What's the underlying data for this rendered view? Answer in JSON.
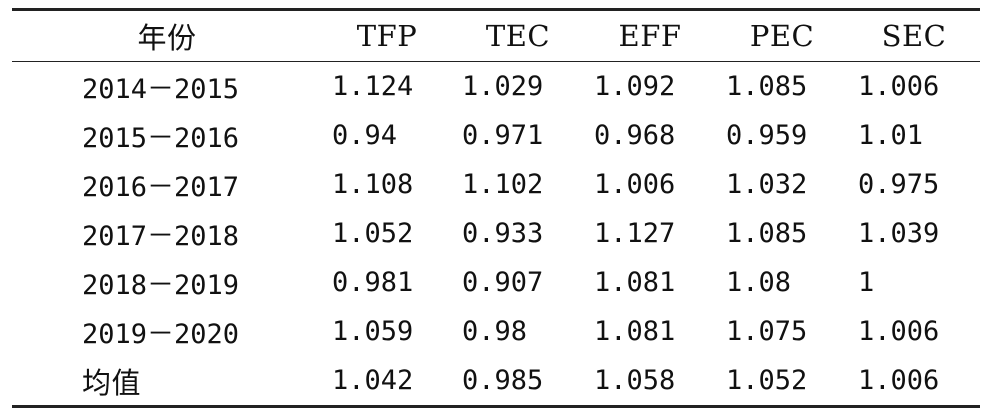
{
  "table": {
    "headers": [
      "年份",
      "TFP",
      "TEC",
      "EFF",
      "PEC",
      "SEC"
    ],
    "rows": [
      {
        "label": "2014－2015",
        "values": [
          "1.124",
          "1.029",
          "1.092",
          "1.085",
          "1.006"
        ]
      },
      {
        "label": "2015－2016",
        "values": [
          "0.94",
          "0.971",
          "0.968",
          "0.959",
          "1.01"
        ]
      },
      {
        "label": "2016－2017",
        "values": [
          "1.108",
          "1.102",
          "1.006",
          "1.032",
          "0.975"
        ]
      },
      {
        "label": "2017－2018",
        "values": [
          "1.052",
          "0.933",
          "1.127",
          "1.085",
          "1.039"
        ]
      },
      {
        "label": "2018－2019",
        "values": [
          "0.981",
          "0.907",
          "1.081",
          "1.08",
          "1"
        ]
      },
      {
        "label": "2019－2020",
        "values": [
          "1.059",
          "0.98",
          "1.081",
          "1.075",
          "1.006"
        ]
      }
    ],
    "mean_row": {
      "label": "均值",
      "values": [
        "1.042",
        "0.985",
        "1.058",
        "1.052",
        "1.006"
      ]
    }
  }
}
